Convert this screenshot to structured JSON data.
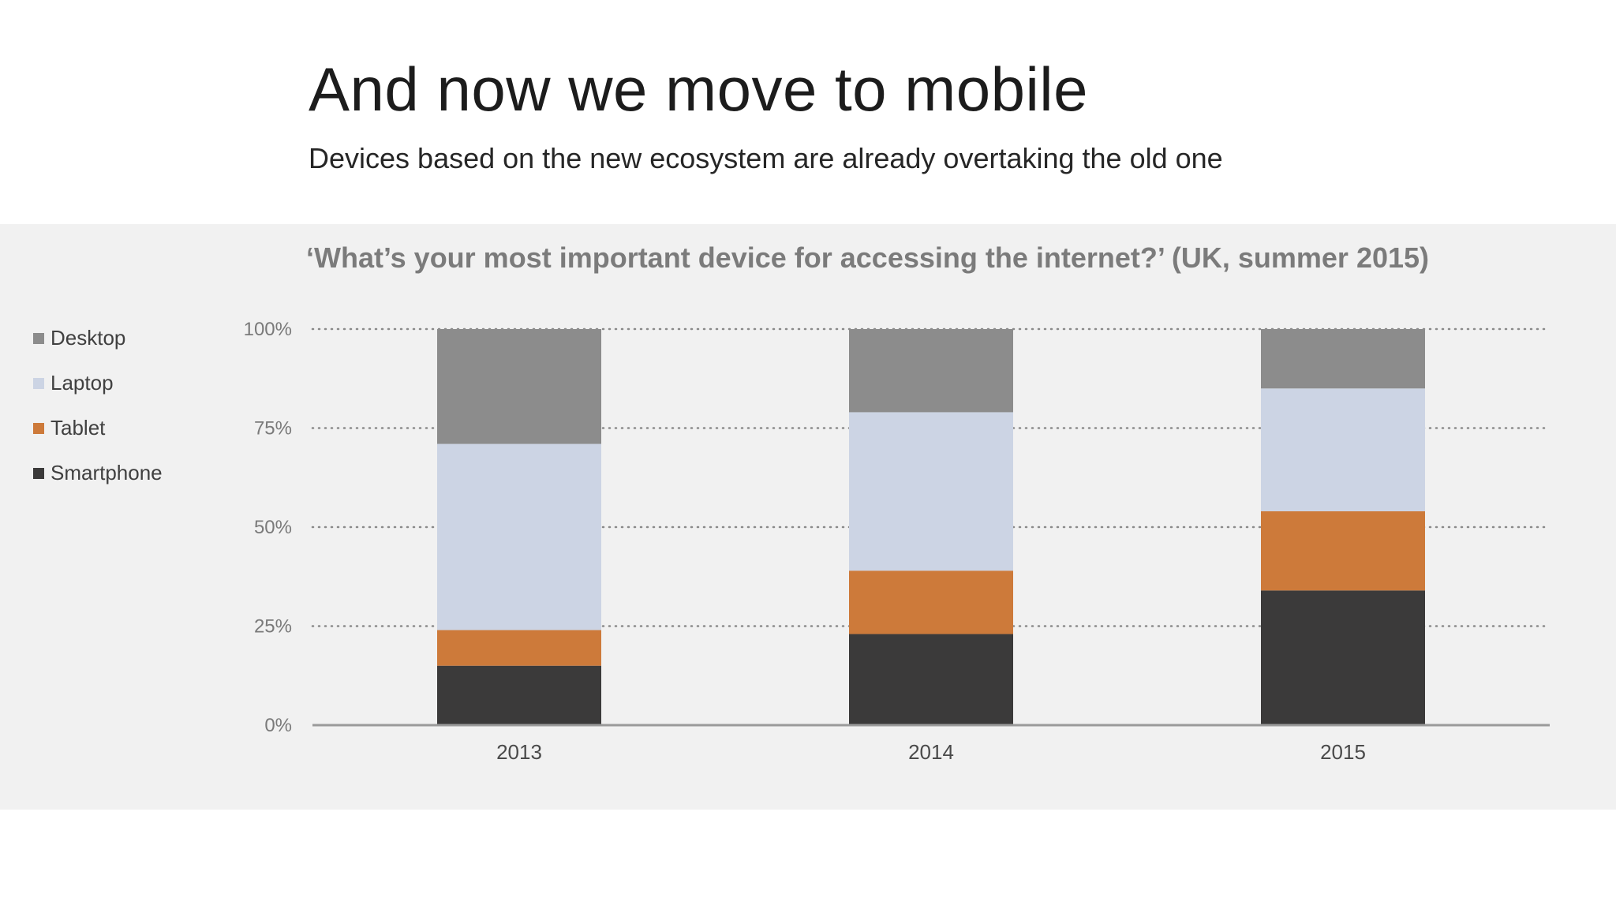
{
  "slide": {
    "title": "And now we move to mobile",
    "subtitle": "Devices based on the new ecosystem are already overtaking the old one"
  },
  "colors": {
    "Desktop": "#8c8c8c",
    "Laptop": "#ccd4e4",
    "Tablet": "#cd7a3a",
    "Smartphone": "#3b3a3a",
    "background_panel": "#f1f1f1"
  },
  "chart_data": {
    "type": "bar",
    "stacked": true,
    "title": "‘What’s your most important device for accessing the internet?’ (UK, summer 2015)",
    "xlabel": "",
    "ylabel": "",
    "ylim": [
      0,
      100
    ],
    "yticks": [
      "0%",
      "25%",
      "50%",
      "75%",
      "100%"
    ],
    "ytick_values": [
      0,
      25,
      50,
      75,
      100
    ],
    "grid": "dotted horizontal",
    "legend": "left",
    "categories": [
      "2013",
      "2014",
      "2015"
    ],
    "series": [
      {
        "name": "Smartphone",
        "values": [
          15,
          23,
          34
        ]
      },
      {
        "name": "Tablet",
        "values": [
          9,
          16,
          20
        ]
      },
      {
        "name": "Laptop",
        "values": [
          47,
          40,
          31
        ]
      },
      {
        "name": "Desktop",
        "values": [
          29,
          21,
          15
        ]
      }
    ],
    "legend_order": [
      "Desktop",
      "Laptop",
      "Tablet",
      "Smartphone"
    ]
  }
}
